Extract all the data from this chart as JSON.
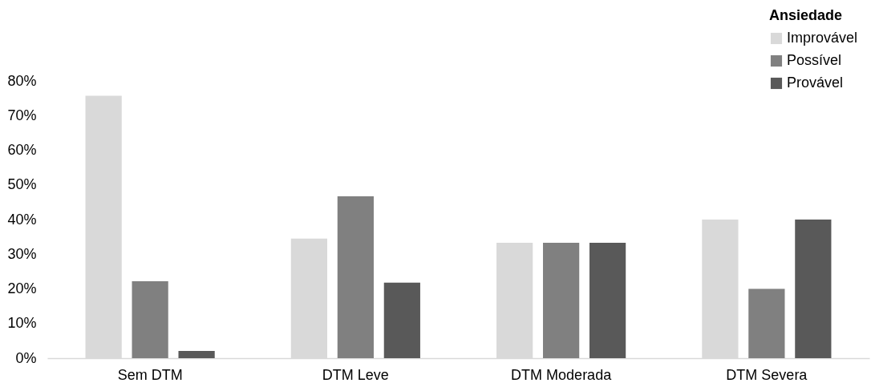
{
  "chart_data": {
    "type": "bar",
    "legend_title": "Ansiedade",
    "legend": "top right",
    "grid": false,
    "categories": [
      "Sem DTM",
      "DTM Leve",
      "DTM Moderada",
      "DTM Severa"
    ],
    "series": [
      {
        "name": "Improvável",
        "color": "#d9d9d9",
        "values": [
          75.7,
          34.5,
          33.3,
          40
        ]
      },
      {
        "name": "Possível",
        "color": "#808080",
        "values": [
          22.2,
          46.7,
          33.3,
          20
        ]
      },
      {
        "name": "Provável",
        "color": "#595959",
        "values": [
          2.1,
          21.8,
          33.3,
          40
        ]
      }
    ],
    "ylim": [
      0,
      80
    ],
    "yticks": [
      {
        "value": 0,
        "label": "0%"
      },
      {
        "value": 10,
        "label": "10%"
      },
      {
        "value": 20,
        "label": "20%"
      },
      {
        "value": 30,
        "label": "30%"
      },
      {
        "value": 40,
        "label": "40%"
      },
      {
        "value": 50,
        "label": "50%"
      },
      {
        "value": 60,
        "label": "60%"
      },
      {
        "value": 70,
        "label": "70%"
      },
      {
        "value": 80,
        "label": "80%"
      }
    ]
  }
}
